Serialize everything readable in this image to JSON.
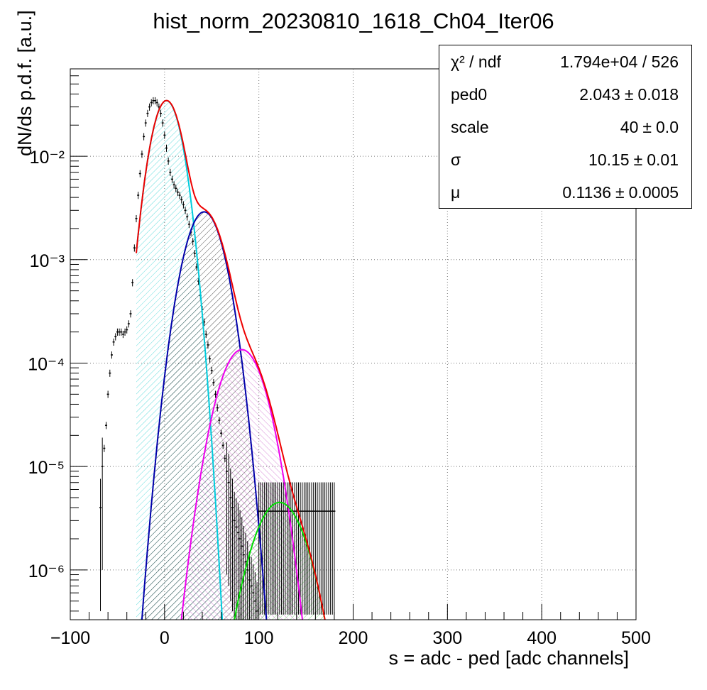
{
  "title": "hist_norm_20230810_1618_Ch04_Iter06",
  "xlabel": "s = adc - ped [adc channels]",
  "ylabel": "dN/ds p.d.f. [a.u.]",
  "stats": {
    "chi2_label": "χ² / ndf",
    "chi2_value": "1.794e+04 / 526",
    "rows": [
      {
        "label": "ped0",
        "value": "2.043",
        "pm": "±",
        "error": "0.018"
      },
      {
        "label": "scale",
        "value": "40",
        "pm": "±",
        "error": "0.0"
      },
      {
        "label": "σ",
        "value": "10.15",
        "pm": "±",
        "error": "0.01"
      },
      {
        "label": "μ",
        "value": "0.1136",
        "pm": "±",
        "error": "0.0005"
      }
    ]
  },
  "chart_data": {
    "type": "line",
    "title": "hist_norm_20230810_1618_Ch04_Iter06",
    "xlabel": "s = adc - ped [adc channels]",
    "ylabel": "dN/ds p.d.f. [a.u.]",
    "xlim": [
      -100,
      500
    ],
    "ylim": [
      3.3e-07,
      0.07
    ],
    "yscale": "log",
    "grid": true,
    "xticks": [
      "−100",
      "0",
      "100",
      "200",
      "300",
      "400",
      "500"
    ],
    "yticks": [
      "10⁻⁶",
      "10⁻⁵",
      "10⁻⁴",
      "10⁻³",
      "10⁻²"
    ],
    "histogram": {
      "x": [
        -68,
        -66,
        -64,
        -62,
        -60,
        -58,
        -56,
        -54,
        -52,
        -50,
        -48,
        -46,
        -44,
        -42,
        -40,
        -38,
        -36,
        -34,
        -32,
        -30,
        -28,
        -26,
        -24,
        -22,
        -20,
        -18,
        -16,
        -14,
        -12,
        -10,
        -8,
        -6,
        -4,
        -2,
        0,
        2,
        4,
        6,
        8,
        10,
        12,
        14,
        16,
        18,
        20,
        22,
        24,
        26,
        28,
        30,
        32,
        34,
        36,
        38,
        40,
        42,
        44,
        46,
        48,
        50,
        52,
        54,
        56,
        58,
        60,
        62,
        64,
        66,
        68,
        70,
        72,
        74,
        76,
        78,
        80,
        82,
        84,
        86,
        88,
        90,
        92,
        94,
        96,
        98,
        100,
        102,
        104,
        106,
        108,
        110,
        112,
        114,
        116,
        118,
        120,
        122,
        124,
        126,
        128,
        130,
        132,
        134,
        136,
        138,
        140,
        142,
        144,
        146,
        148,
        150,
        152,
        154,
        156,
        158,
        160,
        162,
        164,
        166,
        168,
        170,
        172,
        174,
        176,
        178,
        180
      ],
      "y": [
        4e-06,
        1e-05,
        1.5e-05,
        2.5e-05,
        5e-05,
        8e-05,
        0.00012,
        0.00016,
        0.00018,
        0.0002,
        0.0002,
        0.0002,
        0.00019,
        0.0002,
        0.00021,
        0.00024,
        0.0003,
        0.0006,
        0.0013,
        0.0025,
        0.0042,
        0.0068,
        0.0105,
        0.0155,
        0.021,
        0.026,
        0.03,
        0.033,
        0.0345,
        0.0345,
        0.033,
        0.03,
        0.026,
        0.021,
        0.016,
        0.012,
        0.009,
        0.007,
        0.006,
        0.0053,
        0.0049,
        0.0045,
        0.0042,
        0.0038,
        0.0034,
        0.003,
        0.0026,
        0.0022,
        0.00185,
        0.0015,
        0.00115,
        0.00085,
        0.00062,
        0.00045,
        0.00033,
        0.00025,
        0.00019,
        0.00015,
        0.00011,
        8.5e-05,
        6.5e-05,
        5e-05,
        3.7e-05,
        2.8e-05,
        2.1e-05,
        1.6e-05,
        1.2e-05,
        9e-06,
        7e-06,
        5e-06,
        4e-06,
        3e-06,
        2.6e-06,
        2.3e-06,
        2e-06,
        1.7e-06,
        1.4e-06,
        1.2e-06,
        1e-06,
        8e-07,
        7e-07,
        6e-07,
        5e-07,
        4e-07,
        3.7e-06,
        3.7e-06,
        3.7e-06,
        3.7e-06,
        3.7e-06,
        3.7e-06,
        3.7e-06,
        3.7e-06,
        3.7e-06,
        3.7e-06,
        3.7e-06,
        3.7e-06,
        3.7e-06,
        3.7e-06,
        3.7e-06,
        3.7e-06,
        3.7e-06,
        3.7e-06,
        3.7e-06,
        3.7e-06,
        3.7e-06,
        3.7e-06,
        3.7e-06,
        3.7e-06,
        3.7e-06,
        3.7e-06,
        3.7e-06,
        3.7e-06,
        3.7e-06,
        3.7e-06,
        3.7e-06,
        3.7e-06,
        3.7e-06,
        3.7e-06,
        3.7e-06,
        3.7e-06,
        3.7e-06,
        3.7e-06,
        3.7e-06,
        3.7e-06,
        3.7e-06
      ]
    },
    "fit_components": [
      {
        "color": "#00ccdd",
        "hatch": "#66dddd",
        "mean": 2.043,
        "sigma": 12.3,
        "amp": 0.0345,
        "xmin": -30
      },
      {
        "color": "#0000aa",
        "hatch": "#222222",
        "mean": 42,
        "sigma": 15.5,
        "amp": 0.0029,
        "xmin": -30
      },
      {
        "color": "#ee00ee",
        "hatch": "#cc66cc",
        "mean": 82,
        "sigma": 18.5,
        "amp": 0.000135,
        "xmin": -30
      },
      {
        "color": "#00dd00",
        "hatch": "#66dd66",
        "mean": 122,
        "sigma": 21,
        "amp": 4.5e-06,
        "xmin": -30
      }
    ],
    "total_fit_color": "#ee0000"
  }
}
